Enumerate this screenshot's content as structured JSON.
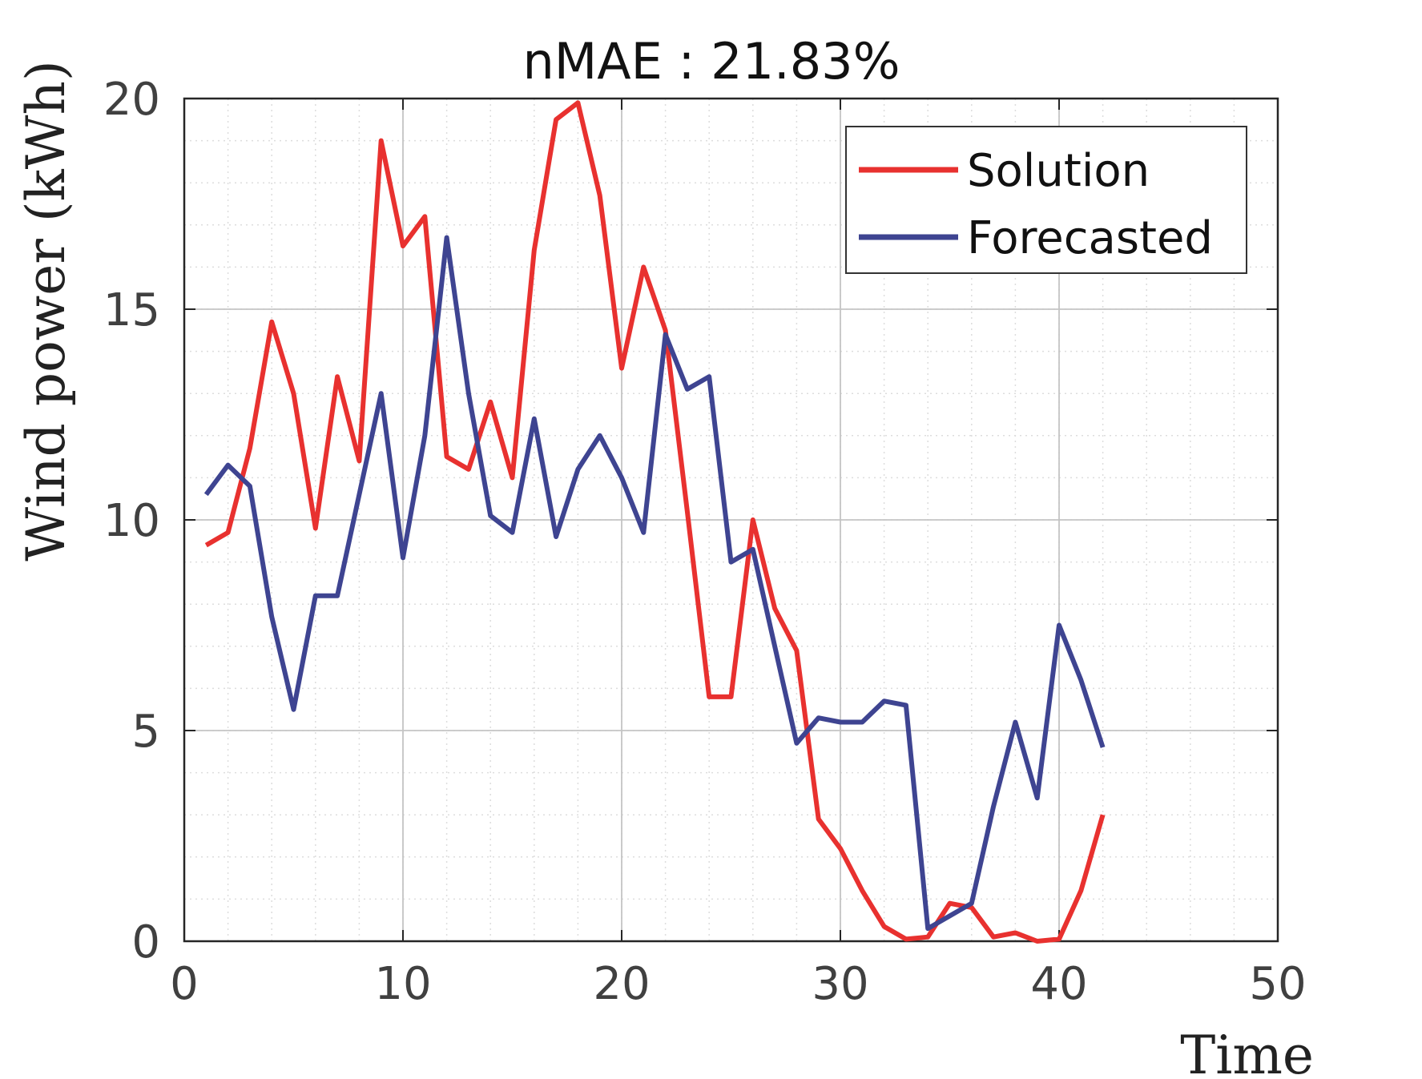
{
  "chart_data": {
    "type": "line",
    "title": "nMAE : 21.83%",
    "xlabel": "Time",
    "ylabel": "Wind power (kWh)",
    "xlim": [
      0,
      50
    ],
    "ylim": [
      0,
      20
    ],
    "xticks": [
      0,
      10,
      20,
      30,
      40,
      50
    ],
    "yticks": [
      0,
      5,
      10,
      15,
      20
    ],
    "grid": "major and minor (dotted)",
    "legend_position": "top-right",
    "x": [
      1,
      2,
      3,
      4,
      5,
      6,
      7,
      8,
      9,
      10,
      11,
      12,
      13,
      14,
      15,
      16,
      17,
      18,
      19,
      20,
      21,
      22,
      23,
      24,
      25,
      26,
      27,
      28,
      29,
      30,
      31,
      32,
      33,
      34,
      35,
      36,
      37,
      38,
      39,
      40,
      41,
      42
    ],
    "series": [
      {
        "name": "Solution",
        "color": "#e8312f",
        "values": [
          9.4,
          9.7,
          11.7,
          14.7,
          13.0,
          9.8,
          13.4,
          11.4,
          19.0,
          16.5,
          17.2,
          11.5,
          11.2,
          12.8,
          11.0,
          16.4,
          19.5,
          19.9,
          17.7,
          13.6,
          16.0,
          14.5,
          10.2,
          5.8,
          5.8,
          10.0,
          7.9,
          6.9,
          2.9,
          2.2,
          1.2,
          0.35,
          0.05,
          0.1,
          0.9,
          0.8,
          0.1,
          0.2,
          0.0,
          0.05,
          1.2,
          3.0
        ]
      },
      {
        "name": "Forecasted",
        "color": "#3e4491",
        "values": [
          10.6,
          11.3,
          10.8,
          7.7,
          5.5,
          8.2,
          8.2,
          10.6,
          13.0,
          9.1,
          12.0,
          16.7,
          13.0,
          10.1,
          9.7,
          12.4,
          9.6,
          11.2,
          12.0,
          11.0,
          9.7,
          14.4,
          13.1,
          13.4,
          9.0,
          9.3,
          7.0,
          4.7,
          5.3,
          5.2,
          5.2,
          5.7,
          5.6,
          0.3,
          0.6,
          0.9,
          3.2,
          5.2,
          3.4,
          7.5,
          6.2,
          4.6
        ]
      }
    ]
  }
}
